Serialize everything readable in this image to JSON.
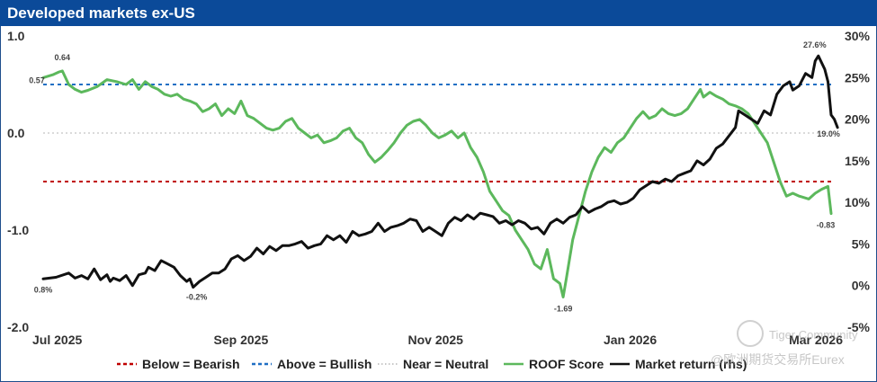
{
  "header": {
    "title": "Developed markets ex-US"
  },
  "chart_data": {
    "type": "line",
    "title": "Developed markets ex-US",
    "y_left": {
      "range": [
        -2.0,
        1.0
      ],
      "ticks": [
        "1.0",
        "0.0",
        "-1.0",
        "-2.0"
      ],
      "tick_values": [
        1.0,
        0.0,
        -1.0,
        -2.0
      ]
    },
    "y_right": {
      "range": [
        -5,
        30
      ],
      "ticks": [
        "30%",
        "25%",
        "20%",
        "15%",
        "10%",
        "5%",
        "0%",
        "-5%"
      ],
      "tick_values": [
        30,
        25,
        20,
        15,
        10,
        5,
        0,
        -5
      ]
    },
    "x_ticks": [
      {
        "label": "Jul 2025",
        "t": 0
      },
      {
        "label": "Sep 2025",
        "t": 62
      },
      {
        "label": "Nov 2025",
        "t": 123
      },
      {
        "label": "Jan 2026",
        "t": 184
      },
      {
        "label": "Mar 2026",
        "t": 243
      }
    ],
    "t_range": [
      0,
      247
    ],
    "thresholds": [
      {
        "name": "Below = Bearish",
        "value": -0.5,
        "color": "#c00000"
      },
      {
        "name": "Above = Bullish",
        "value": 0.5,
        "color": "#1f6fc4"
      },
      {
        "name": "Near = Neutral",
        "value": 0.0,
        "color": "#b5b5b5"
      }
    ],
    "series": [
      {
        "name": "ROOF Score",
        "axis": "left",
        "color": "#5cb85c",
        "points": [
          [
            0,
            0.57
          ],
          [
            3,
            0.6
          ],
          [
            5,
            0.63
          ],
          [
            6,
            0.64
          ],
          [
            8,
            0.5
          ],
          [
            10,
            0.45
          ],
          [
            12,
            0.42
          ],
          [
            14,
            0.44
          ],
          [
            17,
            0.48
          ],
          [
            20,
            0.55
          ],
          [
            23,
            0.53
          ],
          [
            26,
            0.5
          ],
          [
            28,
            0.55
          ],
          [
            30,
            0.45
          ],
          [
            32,
            0.53
          ],
          [
            34,
            0.48
          ],
          [
            36,
            0.45
          ],
          [
            38,
            0.4
          ],
          [
            40,
            0.38
          ],
          [
            42,
            0.4
          ],
          [
            44,
            0.35
          ],
          [
            46,
            0.33
          ],
          [
            48,
            0.3
          ],
          [
            50,
            0.22
          ],
          [
            52,
            0.25
          ],
          [
            54,
            0.3
          ],
          [
            56,
            0.18
          ],
          [
            58,
            0.25
          ],
          [
            60,
            0.2
          ],
          [
            62,
            0.33
          ],
          [
            64,
            0.18
          ],
          [
            66,
            0.15
          ],
          [
            68,
            0.1
          ],
          [
            70,
            0.05
          ],
          [
            72,
            0.03
          ],
          [
            74,
            0.05
          ],
          [
            76,
            0.12
          ],
          [
            78,
            0.15
          ],
          [
            80,
            0.05
          ],
          [
            82,
            0.0
          ],
          [
            84,
            -0.05
          ],
          [
            86,
            -0.02
          ],
          [
            88,
            -0.1
          ],
          [
            90,
            -0.08
          ],
          [
            92,
            -0.05
          ],
          [
            94,
            0.02
          ],
          [
            96,
            0.05
          ],
          [
            98,
            -0.05
          ],
          [
            100,
            -0.1
          ],
          [
            102,
            -0.22
          ],
          [
            104,
            -0.3
          ],
          [
            106,
            -0.25
          ],
          [
            108,
            -0.18
          ],
          [
            110,
            -0.1
          ],
          [
            112,
            0.0
          ],
          [
            114,
            0.08
          ],
          [
            116,
            0.12
          ],
          [
            118,
            0.14
          ],
          [
            120,
            0.08
          ],
          [
            122,
            0.0
          ],
          [
            124,
            -0.05
          ],
          [
            126,
            -0.02
          ],
          [
            128,
            0.02
          ],
          [
            130,
            -0.05
          ],
          [
            132,
            0.0
          ],
          [
            134,
            -0.15
          ],
          [
            136,
            -0.25
          ],
          [
            138,
            -0.4
          ],
          [
            140,
            -0.6
          ],
          [
            142,
            -0.7
          ],
          [
            144,
            -0.8
          ],
          [
            146,
            -0.85
          ],
          [
            148,
            -1.0
          ],
          [
            150,
            -1.1
          ],
          [
            152,
            -1.2
          ],
          [
            154,
            -1.35
          ],
          [
            156,
            -1.4
          ],
          [
            158,
            -1.2
          ],
          [
            160,
            -1.5
          ],
          [
            162,
            -1.55
          ],
          [
            163,
            -1.69
          ],
          [
            164,
            -1.5
          ],
          [
            166,
            -1.1
          ],
          [
            168,
            -0.85
          ],
          [
            170,
            -0.6
          ],
          [
            172,
            -0.4
          ],
          [
            174,
            -0.25
          ],
          [
            176,
            -0.15
          ],
          [
            178,
            -0.2
          ],
          [
            180,
            -0.1
          ],
          [
            182,
            -0.05
          ],
          [
            184,
            0.05
          ],
          [
            186,
            0.15
          ],
          [
            188,
            0.22
          ],
          [
            190,
            0.15
          ],
          [
            192,
            0.18
          ],
          [
            194,
            0.25
          ],
          [
            196,
            0.2
          ],
          [
            198,
            0.18
          ],
          [
            200,
            0.2
          ],
          [
            202,
            0.25
          ],
          [
            204,
            0.35
          ],
          [
            206,
            0.45
          ],
          [
            207,
            0.37
          ],
          [
            209,
            0.42
          ],
          [
            211,
            0.38
          ],
          [
            213,
            0.35
          ],
          [
            215,
            0.3
          ],
          [
            217,
            0.28
          ],
          [
            219,
            0.25
          ],
          [
            221,
            0.2
          ],
          [
            223,
            0.1
          ],
          [
            225,
            0.0
          ],
          [
            227,
            -0.1
          ],
          [
            229,
            -0.3
          ],
          [
            231,
            -0.5
          ],
          [
            233,
            -0.65
          ],
          [
            235,
            -0.62
          ],
          [
            237,
            -0.65
          ],
          [
            240,
            -0.68
          ],
          [
            242,
            -0.62
          ],
          [
            244,
            -0.58
          ],
          [
            246,
            -0.55
          ],
          [
            247,
            -0.83
          ]
        ]
      },
      {
        "name": "Market return (rhs)",
        "axis": "right",
        "color": "#111111",
        "points": [
          [
            0,
            0.8
          ],
          [
            4,
            1.0
          ],
          [
            8,
            1.5
          ],
          [
            10,
            0.9
          ],
          [
            12,
            1.2
          ],
          [
            14,
            0.8
          ],
          [
            16,
            2.0
          ],
          [
            18,
            0.7
          ],
          [
            20,
            1.3
          ],
          [
            21,
            0.5
          ],
          [
            22,
            0.9
          ],
          [
            24,
            0.6
          ],
          [
            26,
            1.2
          ],
          [
            28,
            0.0
          ],
          [
            30,
            1.3
          ],
          [
            32,
            1.5
          ],
          [
            33,
            2.2
          ],
          [
            35,
            1.8
          ],
          [
            37,
            3.0
          ],
          [
            39,
            2.6
          ],
          [
            41,
            2.2
          ],
          [
            43,
            1.2
          ],
          [
            45,
            0.5
          ],
          [
            46,
            0.8
          ],
          [
            47,
            -0.2
          ],
          [
            49,
            0.5
          ],
          [
            51,
            1.0
          ],
          [
            53,
            1.5
          ],
          [
            55,
            1.5
          ],
          [
            57,
            2.0
          ],
          [
            59,
            3.2
          ],
          [
            61,
            3.6
          ],
          [
            63,
            3.0
          ],
          [
            65,
            3.5
          ],
          [
            67,
            4.5
          ],
          [
            69,
            3.8
          ],
          [
            71,
            4.7
          ],
          [
            73,
            4.2
          ],
          [
            75,
            4.8
          ],
          [
            77,
            4.8
          ],
          [
            79,
            5.0
          ],
          [
            81,
            5.3
          ],
          [
            83,
            4.5
          ],
          [
            85,
            4.8
          ],
          [
            87,
            5.0
          ],
          [
            89,
            6.0
          ],
          [
            91,
            5.5
          ],
          [
            93,
            6.0
          ],
          [
            95,
            5.2
          ],
          [
            97,
            6.5
          ],
          [
            99,
            6.0
          ],
          [
            101,
            6.2
          ],
          [
            103,
            6.5
          ],
          [
            105,
            7.5
          ],
          [
            107,
            6.5
          ],
          [
            109,
            7.0
          ],
          [
            111,
            7.2
          ],
          [
            113,
            7.5
          ],
          [
            115,
            8.0
          ],
          [
            117,
            7.8
          ],
          [
            119,
            6.5
          ],
          [
            121,
            7.0
          ],
          [
            123,
            6.5
          ],
          [
            125,
            6.0
          ],
          [
            127,
            7.5
          ],
          [
            129,
            8.2
          ],
          [
            131,
            7.8
          ],
          [
            133,
            8.5
          ],
          [
            135,
            8.0
          ],
          [
            137,
            8.7
          ],
          [
            139,
            8.5
          ],
          [
            141,
            8.3
          ],
          [
            143,
            7.5
          ],
          [
            145,
            7.8
          ],
          [
            147,
            7.3
          ],
          [
            149,
            7.8
          ],
          [
            151,
            7.5
          ],
          [
            153,
            6.8
          ],
          [
            155,
            7.0
          ],
          [
            157,
            6.2
          ],
          [
            159,
            7.5
          ],
          [
            161,
            8.0
          ],
          [
            163,
            7.5
          ],
          [
            165,
            8.2
          ],
          [
            167,
            8.5
          ],
          [
            169,
            9.5
          ],
          [
            171,
            8.8
          ],
          [
            173,
            9.2
          ],
          [
            175,
            9.5
          ],
          [
            177,
            10.0
          ],
          [
            179,
            10.2
          ],
          [
            181,
            9.8
          ],
          [
            183,
            10.0
          ],
          [
            185,
            10.5
          ],
          [
            187,
            11.5
          ],
          [
            189,
            12.0
          ],
          [
            191,
            12.5
          ],
          [
            193,
            12.3
          ],
          [
            195,
            12.8
          ],
          [
            197,
            12.5
          ],
          [
            199,
            13.2
          ],
          [
            201,
            13.5
          ],
          [
            203,
            13.8
          ],
          [
            205,
            15.0
          ],
          [
            207,
            14.5
          ],
          [
            209,
            15.2
          ],
          [
            211,
            16.5
          ],
          [
            213,
            17.0
          ],
          [
            215,
            18.0
          ],
          [
            217,
            19.0
          ],
          [
            218,
            21.0
          ],
          [
            220,
            20.5
          ],
          [
            222,
            20.0
          ],
          [
            224,
            19.5
          ],
          [
            226,
            21.0
          ],
          [
            228,
            20.5
          ],
          [
            230,
            23.0
          ],
          [
            232,
            24.0
          ],
          [
            234,
            24.5
          ],
          [
            235,
            23.5
          ],
          [
            237,
            24.0
          ],
          [
            239,
            25.5
          ],
          [
            241,
            25.0
          ],
          [
            242,
            27.0
          ],
          [
            243,
            27.6
          ],
          [
            245,
            26.0
          ],
          [
            246,
            24.5
          ],
          [
            247,
            20.5
          ],
          [
            248,
            20.0
          ],
          [
            249,
            19.0
          ]
        ]
      }
    ],
    "annotations": [
      {
        "label": "0.64",
        "series": "ROOF Score",
        "t": 6,
        "value": 0.64
      },
      {
        "label": "0.57",
        "series": "ROOF Score",
        "t": 0,
        "value": 0.57
      },
      {
        "label": "-1.69",
        "series": "ROOF Score",
        "t": 163,
        "value": -1.69
      },
      {
        "label": "-0.83",
        "series": "ROOF Score",
        "t": 247,
        "value": -0.83
      },
      {
        "label": "0.8%",
        "series": "Market return (rhs)",
        "t": 0,
        "value": 0.8
      },
      {
        "label": "-0.2%",
        "series": "Market return (rhs)",
        "t": 47,
        "value": -0.2
      },
      {
        "label": "27.6%",
        "series": "Market return (rhs)",
        "t": 243,
        "value": 27.6
      },
      {
        "label": "19.0%",
        "series": "Market return (rhs)",
        "t": 249,
        "value": 19.0
      }
    ],
    "legend": {
      "placement": "bottom",
      "items": [
        {
          "label": "Below = Bearish",
          "style": "dashed",
          "color": "#c00000"
        },
        {
          "label": "Above = Bullish",
          "style": "dashed",
          "color": "#1f6fc4"
        },
        {
          "label": "Near = Neutral",
          "style": "dotted",
          "color": "#b5b5b5"
        },
        {
          "label": "ROOF Score",
          "style": "solid",
          "color": "#5cb85c"
        },
        {
          "label": "Market return (rhs)",
          "style": "solid",
          "color": "#111111"
        }
      ]
    }
  },
  "watermark": {
    "line1": "Tiger Community",
    "line2": "@欧洲期货交易所Eurex"
  }
}
